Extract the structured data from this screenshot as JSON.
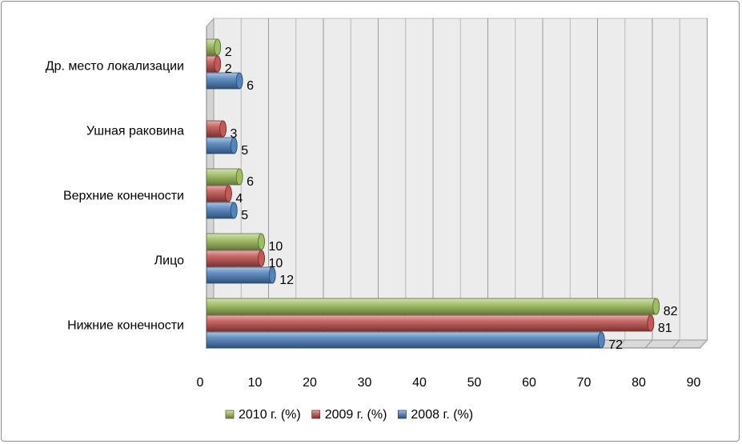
{
  "chart_data": {
    "type": "bar",
    "orientation": "horizontal",
    "style": "3d-cylinder",
    "categories": [
      "Нижние конечности",
      "Лицо",
      "Верхние конечности",
      "Ушная раковина",
      "Др. место локализации"
    ],
    "series": [
      {
        "name": "2008 г. (%)",
        "color": "#4a7ebb",
        "values": [
          72,
          12,
          5,
          5,
          6
        ]
      },
      {
        "name": "2009 г. (%)",
        "color": "#c0504d",
        "values": [
          81,
          10,
          4,
          3,
          2
        ]
      },
      {
        "name": "2010 г. (%)",
        "color": "#9bbb59",
        "values": [
          82,
          10,
          6,
          null,
          2
        ]
      }
    ],
    "xlim": [
      0,
      90
    ],
    "xticks": [
      0,
      10,
      20,
      30,
      40,
      50,
      60,
      70,
      80,
      90
    ],
    "grid": true,
    "legend_position": "bottom",
    "legend_order": [
      2,
      1,
      0
    ]
  }
}
